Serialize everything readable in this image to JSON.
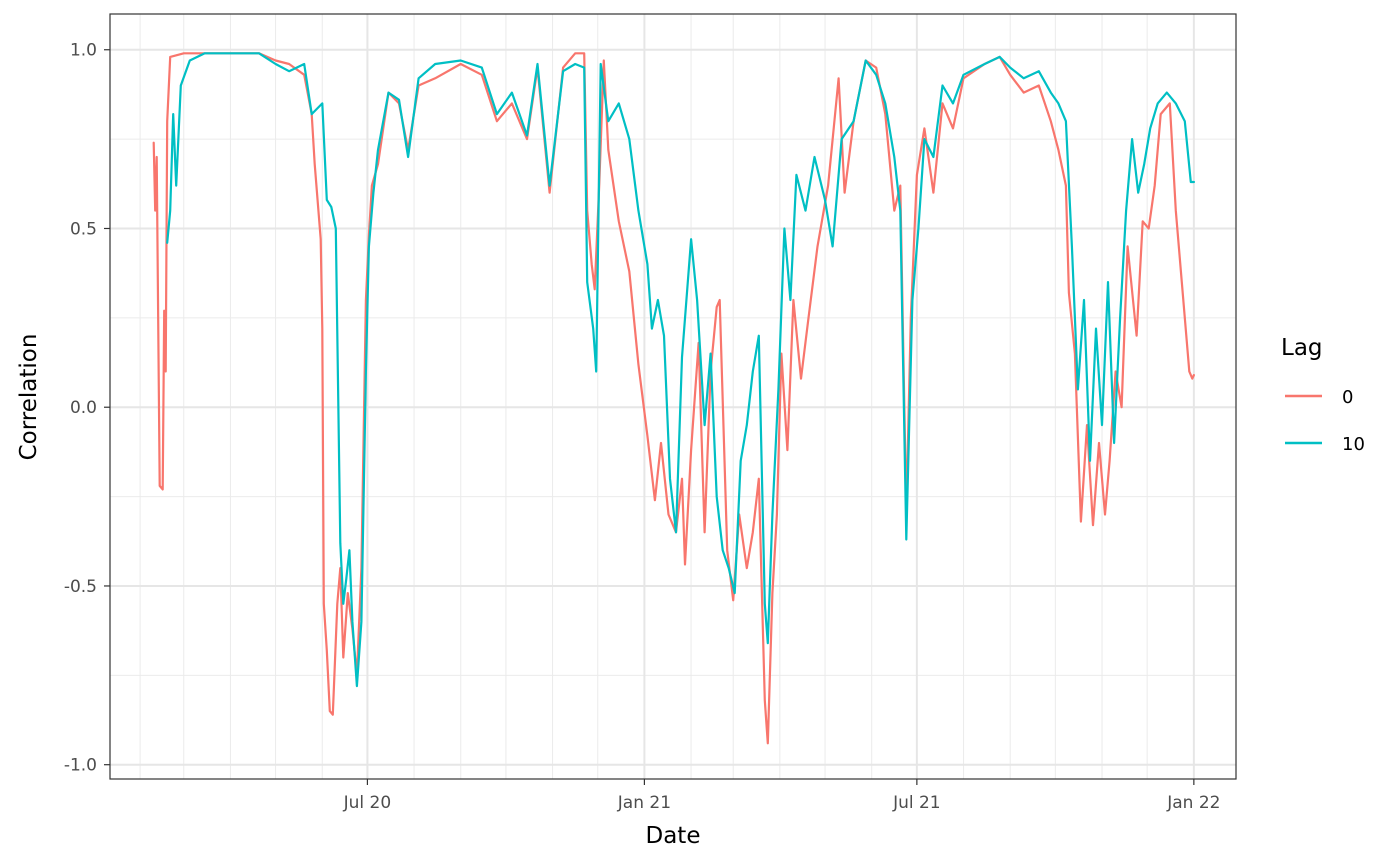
{
  "chart_data": {
    "type": "line",
    "title": "",
    "xlabel": "Date",
    "ylabel": "Correlation",
    "x_type": "date",
    "xlim": [
      "2020-01-12",
      "2022-01-29"
    ],
    "ylim": [
      -1.04,
      1.1
    ],
    "x_ticks": [
      {
        "date": "2020-07-01",
        "label": "Jul 20"
      },
      {
        "date": "2021-01-01",
        "label": "Jan 21"
      },
      {
        "date": "2021-07-01",
        "label": "Jul 21"
      },
      {
        "date": "2022-01-01",
        "label": "Jan 22"
      }
    ],
    "y_ticks": [
      {
        "value": -1.0,
        "label": "-1.0"
      },
      {
        "value": -0.5,
        "label": "-0.5"
      },
      {
        "value": 0.0,
        "label": "0.0"
      },
      {
        "value": 0.5,
        "label": "0.5"
      },
      {
        "value": 1.0,
        "label": "1.0"
      }
    ],
    "grid": true,
    "legend": {
      "title": "Lag",
      "position": "right"
    },
    "series": [
      {
        "name": "0",
        "color": "#F8766D",
        "points": [
          [
            "2020-02-10",
            0.74
          ],
          [
            "2020-02-11",
            0.55
          ],
          [
            "2020-02-12",
            0.7
          ],
          [
            "2020-02-14",
            -0.22
          ],
          [
            "2020-02-16",
            -0.23
          ],
          [
            "2020-02-17",
            0.27
          ],
          [
            "2020-02-18",
            0.1
          ],
          [
            "2020-02-19",
            0.8
          ],
          [
            "2020-02-21",
            0.98
          ],
          [
            "2020-03-01",
            0.99
          ],
          [
            "2020-03-15",
            0.99
          ],
          [
            "2020-04-01",
            0.99
          ],
          [
            "2020-04-20",
            0.99
          ],
          [
            "2020-05-01",
            0.97
          ],
          [
            "2020-05-10",
            0.96
          ],
          [
            "2020-05-20",
            0.93
          ],
          [
            "2020-05-25",
            0.82
          ],
          [
            "2020-05-27",
            0.68
          ],
          [
            "2020-05-31",
            0.47
          ],
          [
            "2020-06-01",
            0.22
          ],
          [
            "2020-06-02",
            -0.55
          ],
          [
            "2020-06-04",
            -0.68
          ],
          [
            "2020-06-06",
            -0.85
          ],
          [
            "2020-06-08",
            -0.86
          ],
          [
            "2020-06-11",
            -0.55
          ],
          [
            "2020-06-13",
            -0.45
          ],
          [
            "2020-06-15",
            -0.7
          ],
          [
            "2020-06-18",
            -0.52
          ],
          [
            "2020-06-21",
            -0.62
          ],
          [
            "2020-06-24",
            -0.75
          ],
          [
            "2020-06-27",
            -0.45
          ],
          [
            "2020-06-30",
            0.3
          ],
          [
            "2020-07-02",
            0.48
          ],
          [
            "2020-07-04",
            0.62
          ],
          [
            "2020-07-08",
            0.68
          ],
          [
            "2020-07-15",
            0.88
          ],
          [
            "2020-07-22",
            0.85
          ],
          [
            "2020-07-28",
            0.72
          ],
          [
            "2020-08-04",
            0.9
          ],
          [
            "2020-08-15",
            0.92
          ],
          [
            "2020-09-01",
            0.96
          ],
          [
            "2020-09-15",
            0.93
          ],
          [
            "2020-09-25",
            0.8
          ],
          [
            "2020-10-05",
            0.85
          ],
          [
            "2020-10-15",
            0.75
          ],
          [
            "2020-10-22",
            0.95
          ],
          [
            "2020-10-30",
            0.6
          ],
          [
            "2020-11-08",
            0.95
          ],
          [
            "2020-11-16",
            0.99
          ],
          [
            "2020-11-22",
            0.99
          ],
          [
            "2020-11-24",
            0.55
          ],
          [
            "2020-11-27",
            0.4
          ],
          [
            "2020-11-29",
            0.33
          ],
          [
            "2020-12-02",
            0.62
          ],
          [
            "2020-12-05",
            0.97
          ],
          [
            "2020-12-08",
            0.72
          ],
          [
            "2020-12-15",
            0.52
          ],
          [
            "2020-12-22",
            0.38
          ],
          [
            "2020-12-28",
            0.12
          ],
          [
            "2021-01-03",
            -0.08
          ],
          [
            "2021-01-08",
            -0.26
          ],
          [
            "2021-01-12",
            -0.1
          ],
          [
            "2021-01-17",
            -0.3
          ],
          [
            "2021-01-22",
            -0.35
          ],
          [
            "2021-01-26",
            -0.2
          ],
          [
            "2021-01-28",
            -0.44
          ],
          [
            "2021-02-01",
            -0.12
          ],
          [
            "2021-02-06",
            0.18
          ],
          [
            "2021-02-10",
            -0.35
          ],
          [
            "2021-02-14",
            0.1
          ],
          [
            "2021-02-18",
            0.28
          ],
          [
            "2021-02-20",
            0.3
          ],
          [
            "2021-02-25",
            -0.4
          ],
          [
            "2021-03-01",
            -0.54
          ],
          [
            "2021-03-05",
            -0.3
          ],
          [
            "2021-03-10",
            -0.45
          ],
          [
            "2021-03-14",
            -0.35
          ],
          [
            "2021-03-18",
            -0.2
          ],
          [
            "2021-03-22",
            -0.82
          ],
          [
            "2021-03-24",
            -0.94
          ],
          [
            "2021-03-27",
            -0.52
          ],
          [
            "2021-03-30",
            -0.3
          ],
          [
            "2021-04-02",
            0.15
          ],
          [
            "2021-04-06",
            -0.12
          ],
          [
            "2021-04-10",
            0.3
          ],
          [
            "2021-04-15",
            0.08
          ],
          [
            "2021-04-20",
            0.25
          ],
          [
            "2021-04-26",
            0.45
          ],
          [
            "2021-05-03",
            0.62
          ],
          [
            "2021-05-10",
            0.92
          ],
          [
            "2021-05-14",
            0.6
          ],
          [
            "2021-05-20",
            0.8
          ],
          [
            "2021-05-28",
            0.97
          ],
          [
            "2021-06-04",
            0.95
          ],
          [
            "2021-06-10",
            0.82
          ],
          [
            "2021-06-16",
            0.55
          ],
          [
            "2021-06-20",
            0.62
          ],
          [
            "2021-06-24",
            -0.3
          ],
          [
            "2021-06-27",
            0.25
          ],
          [
            "2021-07-01",
            0.65
          ],
          [
            "2021-07-06",
            0.78
          ],
          [
            "2021-07-12",
            0.6
          ],
          [
            "2021-07-18",
            0.85
          ],
          [
            "2021-07-25",
            0.78
          ],
          [
            "2021-08-01",
            0.92
          ],
          [
            "2021-08-15",
            0.96
          ],
          [
            "2021-08-25",
            0.98
          ],
          [
            "2021-09-01",
            0.93
          ],
          [
            "2021-09-10",
            0.88
          ],
          [
            "2021-09-20",
            0.9
          ],
          [
            "2021-09-28",
            0.8
          ],
          [
            "2021-10-03",
            0.72
          ],
          [
            "2021-10-08",
            0.62
          ],
          [
            "2021-10-10",
            0.32
          ],
          [
            "2021-10-14",
            0.15
          ],
          [
            "2021-10-18",
            -0.32
          ],
          [
            "2021-10-22",
            -0.05
          ],
          [
            "2021-10-26",
            -0.33
          ],
          [
            "2021-10-30",
            -0.1
          ],
          [
            "2021-11-03",
            -0.3
          ],
          [
            "2021-11-06",
            -0.15
          ],
          [
            "2021-11-10",
            0.1
          ],
          [
            "2021-11-14",
            0.0
          ],
          [
            "2021-11-18",
            0.45
          ],
          [
            "2021-11-24",
            0.2
          ],
          [
            "2021-11-28",
            0.52
          ],
          [
            "2021-12-02",
            0.5
          ],
          [
            "2021-12-06",
            0.62
          ],
          [
            "2021-12-10",
            0.82
          ],
          [
            "2021-12-16",
            0.85
          ],
          [
            "2021-12-20",
            0.55
          ],
          [
            "2021-12-24",
            0.35
          ],
          [
            "2021-12-27",
            0.2
          ],
          [
            "2021-12-29",
            0.1
          ],
          [
            "2021-12-31",
            0.08
          ],
          [
            "2022-01-01",
            0.09
          ]
        ]
      },
      {
        "name": "10",
        "color": "#00BFC4",
        "points": [
          [
            "2020-02-19",
            0.46
          ],
          [
            "2020-02-21",
            0.55
          ],
          [
            "2020-02-23",
            0.82
          ],
          [
            "2020-02-25",
            0.62
          ],
          [
            "2020-02-28",
            0.9
          ],
          [
            "2020-03-05",
            0.97
          ],
          [
            "2020-03-15",
            0.99
          ],
          [
            "2020-04-01",
            0.99
          ],
          [
            "2020-04-20",
            0.99
          ],
          [
            "2020-05-01",
            0.96
          ],
          [
            "2020-05-10",
            0.94
          ],
          [
            "2020-05-20",
            0.96
          ],
          [
            "2020-05-25",
            0.82
          ],
          [
            "2020-06-01",
            0.85
          ],
          [
            "2020-06-04",
            0.58
          ],
          [
            "2020-06-07",
            0.56
          ],
          [
            "2020-06-10",
            0.5
          ],
          [
            "2020-06-13",
            -0.38
          ],
          [
            "2020-06-15",
            -0.55
          ],
          [
            "2020-06-17",
            -0.48
          ],
          [
            "2020-06-19",
            -0.4
          ],
          [
            "2020-06-21",
            -0.6
          ],
          [
            "2020-06-24",
            -0.78
          ],
          [
            "2020-06-27",
            -0.6
          ],
          [
            "2020-06-30",
            0.1
          ],
          [
            "2020-07-02",
            0.45
          ],
          [
            "2020-07-05",
            0.6
          ],
          [
            "2020-07-08",
            0.72
          ],
          [
            "2020-07-15",
            0.88
          ],
          [
            "2020-07-22",
            0.86
          ],
          [
            "2020-07-28",
            0.7
          ],
          [
            "2020-08-04",
            0.92
          ],
          [
            "2020-08-15",
            0.96
          ],
          [
            "2020-09-01",
            0.97
          ],
          [
            "2020-09-15",
            0.95
          ],
          [
            "2020-09-25",
            0.82
          ],
          [
            "2020-10-05",
            0.88
          ],
          [
            "2020-10-15",
            0.76
          ],
          [
            "2020-10-22",
            0.96
          ],
          [
            "2020-10-30",
            0.62
          ],
          [
            "2020-11-08",
            0.94
          ],
          [
            "2020-11-16",
            0.96
          ],
          [
            "2020-11-22",
            0.95
          ],
          [
            "2020-11-24",
            0.35
          ],
          [
            "2020-11-28",
            0.22
          ],
          [
            "2020-11-30",
            0.1
          ],
          [
            "2020-12-03",
            0.96
          ],
          [
            "2020-12-08",
            0.8
          ],
          [
            "2020-12-15",
            0.85
          ],
          [
            "2020-12-22",
            0.75
          ],
          [
            "2020-12-28",
            0.55
          ],
          [
            "2021-01-03",
            0.4
          ],
          [
            "2021-01-06",
            0.22
          ],
          [
            "2021-01-10",
            0.3
          ],
          [
            "2021-01-14",
            0.2
          ],
          [
            "2021-01-18",
            -0.2
          ],
          [
            "2021-01-22",
            -0.35
          ],
          [
            "2021-01-26",
            0.14
          ],
          [
            "2021-02-01",
            0.47
          ],
          [
            "2021-02-05",
            0.3
          ],
          [
            "2021-02-10",
            -0.05
          ],
          [
            "2021-02-14",
            0.15
          ],
          [
            "2021-02-18",
            -0.25
          ],
          [
            "2021-02-22",
            -0.4
          ],
          [
            "2021-02-26",
            -0.45
          ],
          [
            "2021-03-02",
            -0.52
          ],
          [
            "2021-03-06",
            -0.15
          ],
          [
            "2021-03-10",
            -0.05
          ],
          [
            "2021-03-14",
            0.1
          ],
          [
            "2021-03-18",
            0.2
          ],
          [
            "2021-03-22",
            -0.55
          ],
          [
            "2021-03-24",
            -0.66
          ],
          [
            "2021-03-27",
            -0.3
          ],
          [
            "2021-03-31",
            0.05
          ],
          [
            "2021-04-04",
            0.5
          ],
          [
            "2021-04-08",
            0.3
          ],
          [
            "2021-04-12",
            0.65
          ],
          [
            "2021-04-18",
            0.55
          ],
          [
            "2021-04-24",
            0.7
          ],
          [
            "2021-05-01",
            0.58
          ],
          [
            "2021-05-06",
            0.45
          ],
          [
            "2021-05-12",
            0.75
          ],
          [
            "2021-05-20",
            0.8
          ],
          [
            "2021-05-28",
            0.97
          ],
          [
            "2021-06-04",
            0.93
          ],
          [
            "2021-06-10",
            0.85
          ],
          [
            "2021-06-16",
            0.7
          ],
          [
            "2021-06-20",
            0.55
          ],
          [
            "2021-06-24",
            -0.37
          ],
          [
            "2021-06-28",
            0.3
          ],
          [
            "2021-07-02",
            0.5
          ],
          [
            "2021-07-06",
            0.75
          ],
          [
            "2021-07-12",
            0.7
          ],
          [
            "2021-07-18",
            0.9
          ],
          [
            "2021-07-25",
            0.85
          ],
          [
            "2021-08-01",
            0.93
          ],
          [
            "2021-08-15",
            0.96
          ],
          [
            "2021-08-25",
            0.98
          ],
          [
            "2021-09-01",
            0.95
          ],
          [
            "2021-09-10",
            0.92
          ],
          [
            "2021-09-20",
            0.94
          ],
          [
            "2021-09-28",
            0.88
          ],
          [
            "2021-10-03",
            0.85
          ],
          [
            "2021-10-08",
            0.8
          ],
          [
            "2021-10-12",
            0.45
          ],
          [
            "2021-10-16",
            0.05
          ],
          [
            "2021-10-20",
            0.3
          ],
          [
            "2021-10-24",
            -0.15
          ],
          [
            "2021-10-28",
            0.22
          ],
          [
            "2021-11-01",
            -0.05
          ],
          [
            "2021-11-05",
            0.35
          ],
          [
            "2021-11-09",
            -0.1
          ],
          [
            "2021-11-13",
            0.25
          ],
          [
            "2021-11-17",
            0.55
          ],
          [
            "2021-11-21",
            0.75
          ],
          [
            "2021-11-25",
            0.6
          ],
          [
            "2021-11-29",
            0.68
          ],
          [
            "2021-12-03",
            0.78
          ],
          [
            "2021-12-08",
            0.85
          ],
          [
            "2021-12-14",
            0.88
          ],
          [
            "2021-12-20",
            0.85
          ],
          [
            "2021-12-26",
            0.8
          ],
          [
            "2021-12-30",
            0.63
          ],
          [
            "2022-01-01",
            0.63
          ]
        ]
      }
    ]
  }
}
